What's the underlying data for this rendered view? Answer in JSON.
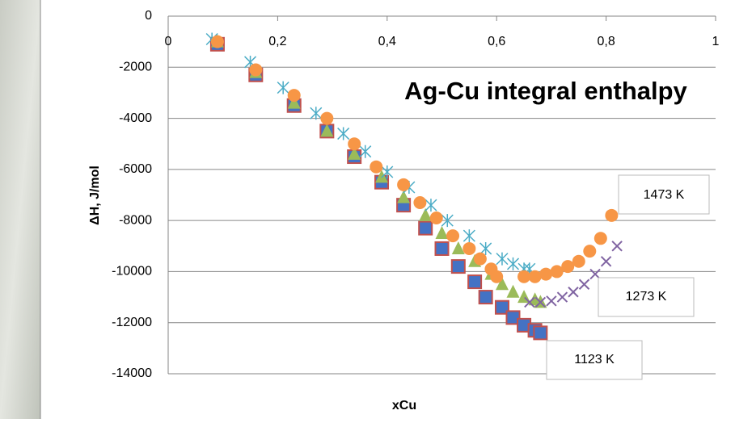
{
  "chart_data": {
    "type": "scatter",
    "title": "Ag-Cu integral enthalpy",
    "xlabel": "xCu",
    "ylabel": "ΔH, J/mol",
    "annotations": [
      "1473 K",
      "1273 K",
      "1123 K"
    ],
    "xlim": [
      0,
      1
    ],
    "ylim": [
      -14000,
      0
    ],
    "xticks": [
      0,
      {
        "value": 0.2,
        "label": "0,2"
      },
      {
        "value": 0.4,
        "label": "0,4"
      },
      {
        "value": 0.6,
        "label": "0,6"
      },
      {
        "value": 0.8,
        "label": "0,8"
      },
      1
    ],
    "yticks": [
      0,
      -2000,
      -4000,
      -6000,
      -8000,
      -10000,
      -12000,
      -14000
    ],
    "grid": true,
    "series": [
      {
        "color": "#4472c4",
        "marker": "square",
        "x": [
          0.09,
          0.16,
          0.23,
          0.29,
          0.34,
          0.39,
          0.43,
          0.47,
          0.5,
          0.53,
          0.56,
          0.58,
          0.61,
          0.63,
          0.65,
          0.67,
          0.68
        ],
        "values": [
          -1100,
          -2300,
          -3500,
          -4500,
          -5500,
          -6500,
          -7400,
          -8300,
          -9100,
          -9800,
          -10400,
          -11000,
          -11400,
          -11800,
          -12100,
          -12300,
          -12400
        ]
      },
      {
        "color": "#9bbb59",
        "marker": "triangle",
        "x": [
          0.09,
          0.16,
          0.23,
          0.29,
          0.34,
          0.39,
          0.43,
          0.47,
          0.5,
          0.53,
          0.56,
          0.59,
          0.61,
          0.63,
          0.65,
          0.67,
          0.68
        ],
        "values": [
          -1000,
          -2200,
          -3400,
          -4500,
          -5400,
          -6300,
          -7100,
          -7800,
          -8500,
          -9100,
          -9600,
          -10100,
          -10500,
          -10800,
          -11000,
          -11100,
          -11200
        ]
      },
      {
        "color": "#8064a2",
        "marker": "x",
        "x": [
          0.66,
          0.68,
          0.7,
          0.72,
          0.74,
          0.76,
          0.78,
          0.8,
          0.82
        ],
        "values": [
          -11200,
          -11200,
          -11150,
          -11000,
          -10800,
          -10500,
          -10100,
          -9600,
          -9000
        ]
      },
      {
        "color": "#4bacc6",
        "marker": "star",
        "x": [
          0.08,
          0.15,
          0.21,
          0.27,
          0.32,
          0.36,
          0.4,
          0.44,
          0.48,
          0.51,
          0.55,
          0.58,
          0.61,
          0.63,
          0.65,
          0.66
        ],
        "values": [
          -900,
          -1800,
          -2800,
          -3800,
          -4600,
          -5300,
          -6100,
          -6700,
          -7400,
          -8000,
          -8600,
          -9100,
          -9500,
          -9700,
          -9900,
          -9900
        ]
      },
      {
        "color": "#f79646",
        "marker": "circle",
        "x": [
          0.09,
          0.16,
          0.23,
          0.29,
          0.34,
          0.38,
          0.43,
          0.46,
          0.49,
          0.52,
          0.55,
          0.57,
          0.59,
          0.6,
          0.65,
          0.67,
          0.69,
          0.71,
          0.73,
          0.75,
          0.77,
          0.79,
          0.81
        ],
        "values": [
          -1000,
          -2100,
          -3100,
          -4000,
          -5000,
          -5900,
          -6600,
          -7300,
          -7900,
          -8600,
          -9100,
          -9500,
          -9900,
          -10200,
          -10200,
          -10200,
          -10100,
          -10000,
          -9800,
          -9600,
          -9200,
          -8700,
          -7800
        ]
      }
    ]
  }
}
